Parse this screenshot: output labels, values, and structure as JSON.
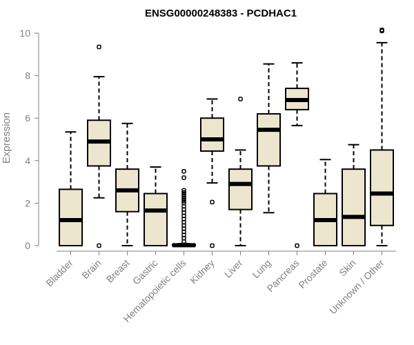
{
  "chart_data": {
    "type": "box",
    "title": "ENSG00000248383 - PCDHAC1",
    "xlabel": "",
    "ylabel": "Expression",
    "ylim": [
      0,
      10.3
    ],
    "yticks": [
      0,
      2,
      4,
      6,
      8,
      10
    ],
    "grid": false,
    "colors": {
      "box_fill": "#ede6cf",
      "line": "#000000",
      "tick_text": "#808080"
    },
    "categories": [
      "Bladder",
      "Brain",
      "Breast",
      "Gastric",
      "Hematopoietic cells",
      "Kidney",
      "Liver",
      "Lung",
      "Pancreas",
      "Prostate",
      "Skin",
      "Unknown / Other"
    ],
    "boxes": [
      {
        "min": 0,
        "q1": 0,
        "median": 1.2,
        "q3": 2.65,
        "max": 5.35,
        "outliers": []
      },
      {
        "min": 2.25,
        "q1": 3.75,
        "median": 4.9,
        "q3": 5.9,
        "max": 7.95,
        "outliers": [
          0,
          9.35
        ]
      },
      {
        "min": 0,
        "q1": 1.6,
        "median": 2.6,
        "q3": 3.6,
        "max": 5.75,
        "outliers": []
      },
      {
        "min": 0,
        "q1": 0,
        "median": 1.65,
        "q3": 2.45,
        "max": 3.7,
        "outliers": []
      },
      {
        "min": 0,
        "q1": 0,
        "median": 0.02,
        "q3": 0.05,
        "max": 0.1,
        "outliers": [
          0.2,
          0.35,
          0.5,
          0.65,
          0.8,
          0.95,
          1.1,
          1.25,
          1.4,
          1.55,
          1.7,
          1.85,
          2.0,
          2.1,
          2.2,
          2.3,
          2.4,
          2.5,
          2.6,
          3.2,
          3.5
        ]
      },
      {
        "min": 2.95,
        "q1": 4.45,
        "median": 5.0,
        "q3": 6.0,
        "max": 6.9,
        "outliers": [
          0,
          2.05
        ]
      },
      {
        "min": 0,
        "q1": 1.7,
        "median": 2.9,
        "q3": 3.6,
        "max": 4.5,
        "outliers": [
          6.9
        ]
      },
      {
        "min": 1.55,
        "q1": 3.75,
        "median": 5.45,
        "q3": 6.2,
        "max": 8.55,
        "outliers": []
      },
      {
        "min": 5.65,
        "q1": 6.4,
        "median": 6.85,
        "q3": 7.4,
        "max": 8.6,
        "outliers": [
          0
        ]
      },
      {
        "min": 0,
        "q1": 0,
        "median": 1.2,
        "q3": 2.45,
        "max": 4.05,
        "outliers": []
      },
      {
        "min": 0,
        "q1": 0,
        "median": 1.35,
        "q3": 3.6,
        "max": 4.75,
        "outliers": []
      },
      {
        "min": 0,
        "q1": 0.95,
        "median": 2.45,
        "q3": 4.5,
        "max": 9.55,
        "outliers": [
          10.1,
          10.15
        ]
      }
    ]
  }
}
